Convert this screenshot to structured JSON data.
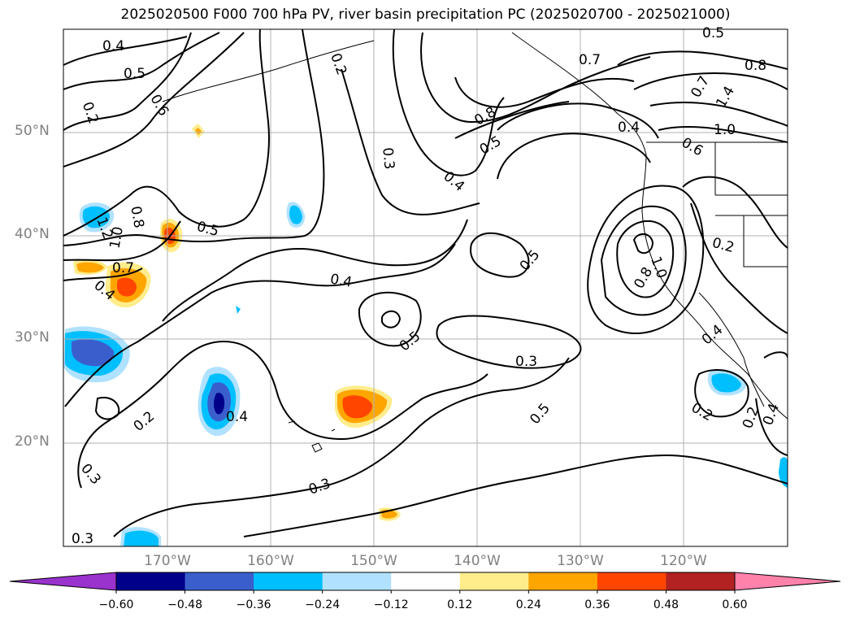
{
  "title": "2025020500 F000 700 hPa PV, river basin precipitation PC (2025020700 - 2025021000)",
  "lat_labels": [
    "50°N",
    "40°N",
    "30°N",
    "20°N"
  ],
  "lon_labels": [
    "170°W",
    "160°W",
    "150°W",
    "140°W",
    "130°W",
    "120°W"
  ],
  "colorbar": {
    "tick_labels": [
      "−0.60",
      "−0.48",
      "−0.36",
      "−0.24",
      "−0.12",
      "0.12",
      "0.24",
      "0.36",
      "0.48",
      "0.60"
    ],
    "colors": [
      "#9a32cd",
      "#00008b",
      "#3a5fcd",
      "#00bfff",
      "#b0e2ff",
      "#ffffff",
      "#ffec8b",
      "#ffa500",
      "#ff4500",
      "#b22222",
      "#ff82ab"
    ]
  },
  "contour_labels": [
    "0.4",
    "0.5",
    "0.6",
    "0.7",
    "0.8",
    "1.0",
    "1.2",
    "0.2",
    "0.3",
    "0.4",
    "0.5",
    "0.4",
    "0.5",
    "0.3",
    "0.4",
    "0.5",
    "0.7",
    "0.8",
    "0.5",
    "0.8",
    "1.4",
    "1.0",
    "0.6",
    "0.4",
    "0.5",
    "0.8",
    "1.0",
    "0.7",
    "0.4",
    "0.2",
    "0.4",
    "0.3",
    "0.5",
    "0.3",
    "0.2",
    "0.4",
    "0.2",
    "0.3",
    "0.2",
    "0.2",
    "0.3",
    "0.4",
    "0.5",
    "0.2"
  ]
}
